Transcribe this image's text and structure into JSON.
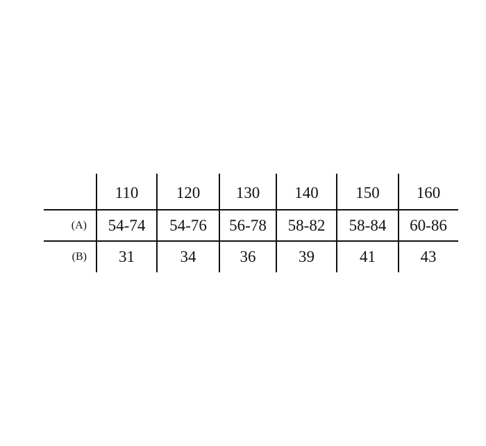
{
  "table": {
    "columns": [
      "110",
      "120",
      "130",
      "140",
      "150",
      "160"
    ],
    "rows": [
      {
        "label": "(A)",
        "values": [
          "54-74",
          "54-76",
          "56-78",
          "58-82",
          "58-84",
          "60-86"
        ]
      },
      {
        "label": "(B)",
        "values": [
          "31",
          "34",
          "36",
          "39",
          "41",
          "43"
        ]
      }
    ]
  }
}
